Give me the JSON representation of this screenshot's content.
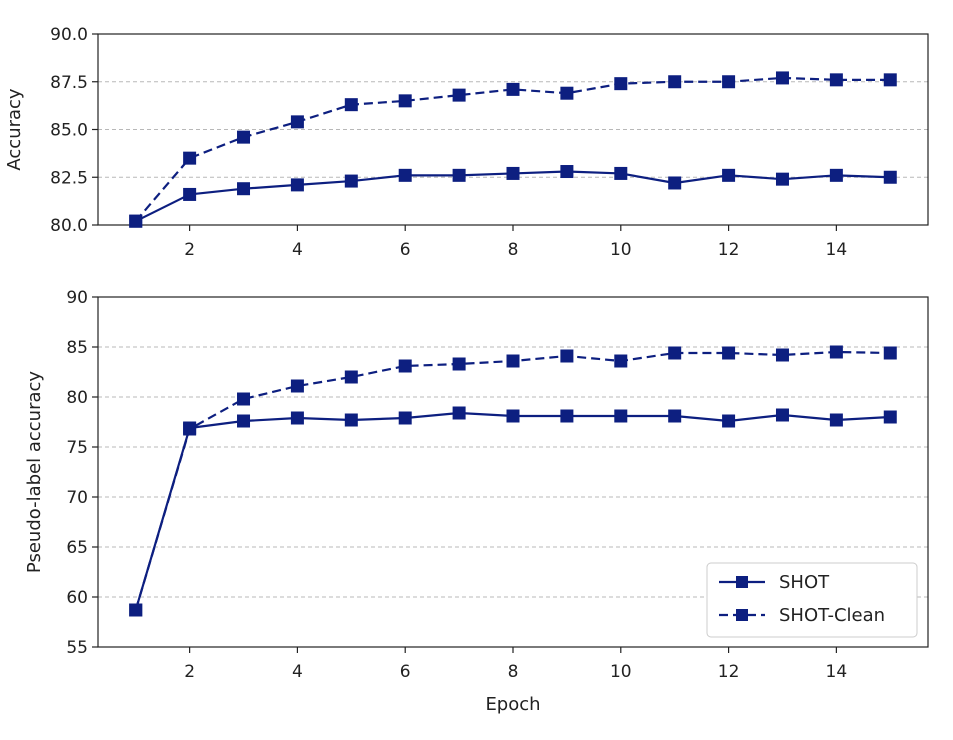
{
  "colors": {
    "series": "#0d1f80",
    "grid": "#b8b8b8",
    "axis": "#222222"
  },
  "chart_data": [
    {
      "type": "line",
      "xlabel": "",
      "ylabel": "Accuracy",
      "xlim": [
        0.3,
        15.7
      ],
      "ylim": [
        80.0,
        90.0
      ],
      "xticks": [
        2,
        4,
        6,
        8,
        10,
        12,
        14
      ],
      "yticks": [
        80.0,
        82.5,
        85.0,
        87.5,
        90.0
      ],
      "ytick_labels": [
        "80.0",
        "82.5",
        "85.0",
        "87.5",
        "90.0"
      ],
      "grid": "horizontal dashed",
      "x": [
        1,
        2,
        3,
        4,
        5,
        6,
        7,
        8,
        9,
        10,
        11,
        12,
        13,
        14,
        15
      ],
      "series": [
        {
          "name": "SHOT",
          "style": "solid",
          "marker": "square",
          "values": [
            80.2,
            81.6,
            81.9,
            82.1,
            82.3,
            82.6,
            82.6,
            82.7,
            82.8,
            82.7,
            82.2,
            82.6,
            82.4,
            82.6,
            82.5
          ]
        },
        {
          "name": "SHOT-Clean",
          "style": "dashed",
          "marker": "square",
          "values": [
            80.2,
            83.5,
            84.6,
            85.4,
            86.3,
            86.5,
            86.8,
            87.1,
            86.9,
            87.4,
            87.5,
            87.5,
            87.7,
            87.6,
            87.6
          ]
        }
      ]
    },
    {
      "type": "line",
      "xlabel": "Epoch",
      "ylabel": "Pseudo-label accuracy",
      "xlim": [
        0.3,
        15.7
      ],
      "ylim": [
        55,
        90
      ],
      "xticks": [
        2,
        4,
        6,
        8,
        10,
        12,
        14
      ],
      "yticks": [
        55,
        60,
        65,
        70,
        75,
        80,
        85,
        90
      ],
      "ytick_labels": [
        "55",
        "60",
        "65",
        "70",
        "75",
        "80",
        "85",
        "90"
      ],
      "grid": "horizontal dashed",
      "legend": "bottom-right",
      "x": [
        1,
        2,
        3,
        4,
        5,
        6,
        7,
        8,
        9,
        10,
        11,
        12,
        13,
        14,
        15
      ],
      "series": [
        {
          "name": "SHOT",
          "style": "solid",
          "marker": "square",
          "values": [
            58.7,
            76.9,
            77.6,
            77.9,
            77.7,
            77.9,
            78.4,
            78.1,
            78.1,
            78.1,
            78.1,
            77.6,
            78.2,
            77.7,
            78.0
          ]
        },
        {
          "name": "SHOT-Clean",
          "style": "dashed",
          "marker": "square",
          "values": [
            58.7,
            76.8,
            79.8,
            81.1,
            82.0,
            83.1,
            83.3,
            83.6,
            84.1,
            83.6,
            84.4,
            84.4,
            84.2,
            84.5,
            84.4
          ]
        }
      ]
    }
  ]
}
